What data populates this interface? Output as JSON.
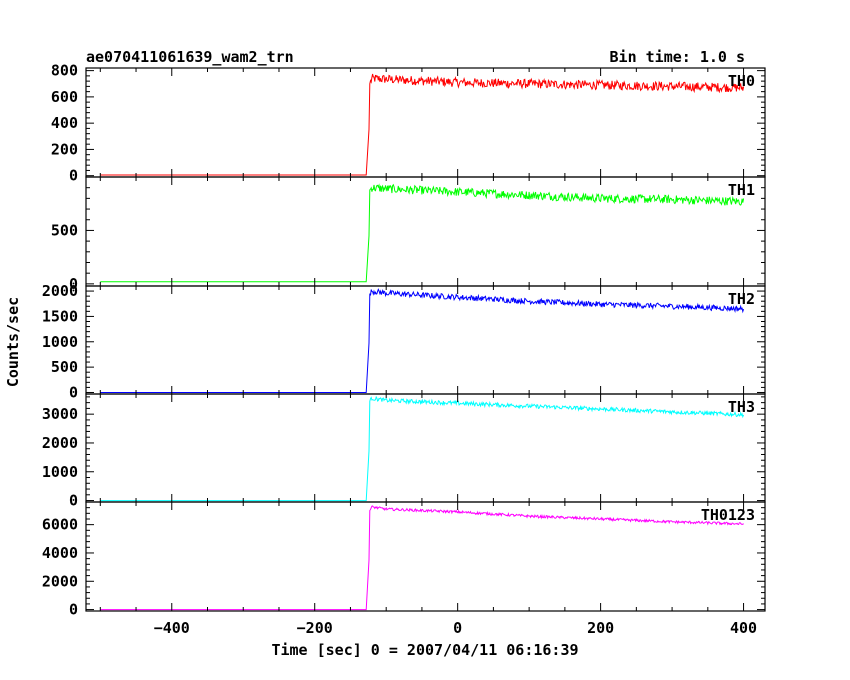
{
  "chart_data": {
    "type": "line",
    "title_left": "ae070411061639_wam2_trn",
    "title_right": "Bin time: 1.0 s",
    "xlabel": "Time [sec] 0 = 2007/04/11 06:16:39",
    "ylabel": "Counts/sec",
    "xlim": [
      -520,
      430
    ],
    "xticks": [
      -400,
      -200,
      0,
      200,
      400
    ],
    "xtick_labels": [
      "−400",
      "−200",
      "0",
      "200",
      "400"
    ],
    "panels": [
      {
        "name": "TH0",
        "color": "#ff0000",
        "ylim": [
          -10,
          820
        ],
        "yticks": [
          0,
          200,
          400,
          600,
          800
        ],
        "ytick_labels": [
          "0",
          "200",
          "400",
          "600",
          "800"
        ],
        "x": [
          -500,
          -125,
          -123,
          -120,
          -100,
          0,
          100,
          200,
          300,
          400
        ],
        "y": [
          5,
          5,
          700,
          740,
          735,
          710,
          700,
          690,
          680,
          670
        ],
        "noise": 35
      },
      {
        "name": "TH1",
        "color": "#00ff00",
        "ylim": [
          -20,
          1000
        ],
        "yticks": [
          0,
          500
        ],
        "ytick_labels": [
          "0",
          "500"
        ],
        "x": [
          -500,
          -125,
          -123,
          -120,
          -100,
          0,
          100,
          200,
          300,
          400
        ],
        "y": [
          20,
          20,
          880,
          900,
          890,
          860,
          830,
          800,
          790,
          770
        ],
        "noise": 40
      },
      {
        "name": "TH2",
        "color": "#0000ff",
        "ylim": [
          -30,
          2100
        ],
        "yticks": [
          0,
          500,
          1000,
          1500,
          2000
        ],
        "ytick_labels": [
          "0",
          "500",
          "1000",
          "1500",
          "2000"
        ],
        "x": [
          -500,
          -125,
          -123,
          -120,
          -100,
          0,
          100,
          200,
          300,
          400
        ],
        "y": [
          0,
          0,
          1950,
          2000,
          1960,
          1880,
          1800,
          1740,
          1700,
          1650
        ],
        "noise": 55
      },
      {
        "name": "TH3",
        "color": "#00ffff",
        "ylim": [
          -50,
          3700
        ],
        "yticks": [
          0,
          1000,
          2000,
          3000
        ],
        "ytick_labels": [
          "0",
          "1000",
          "2000",
          "3000"
        ],
        "x": [
          -500,
          -125,
          -123,
          -120,
          -100,
          0,
          100,
          200,
          300,
          400
        ],
        "y": [
          0,
          0,
          3450,
          3550,
          3480,
          3380,
          3280,
          3180,
          3080,
          2980
        ],
        "noise": 70
      },
      {
        "name": "TH0123",
        "color": "#ff00ff",
        "ylim": [
          -100,
          7600
        ],
        "yticks": [
          0,
          2000,
          4000,
          6000
        ],
        "ytick_labels": [
          "0",
          "2000",
          "4000",
          "6000"
        ],
        "x": [
          -500,
          -125,
          -123,
          -120,
          -100,
          0,
          100,
          200,
          300,
          400
        ],
        "y": [
          0,
          0,
          7000,
          7250,
          7100,
          6900,
          6600,
          6400,
          6200,
          6050
        ],
        "noise": 90
      }
    ]
  }
}
